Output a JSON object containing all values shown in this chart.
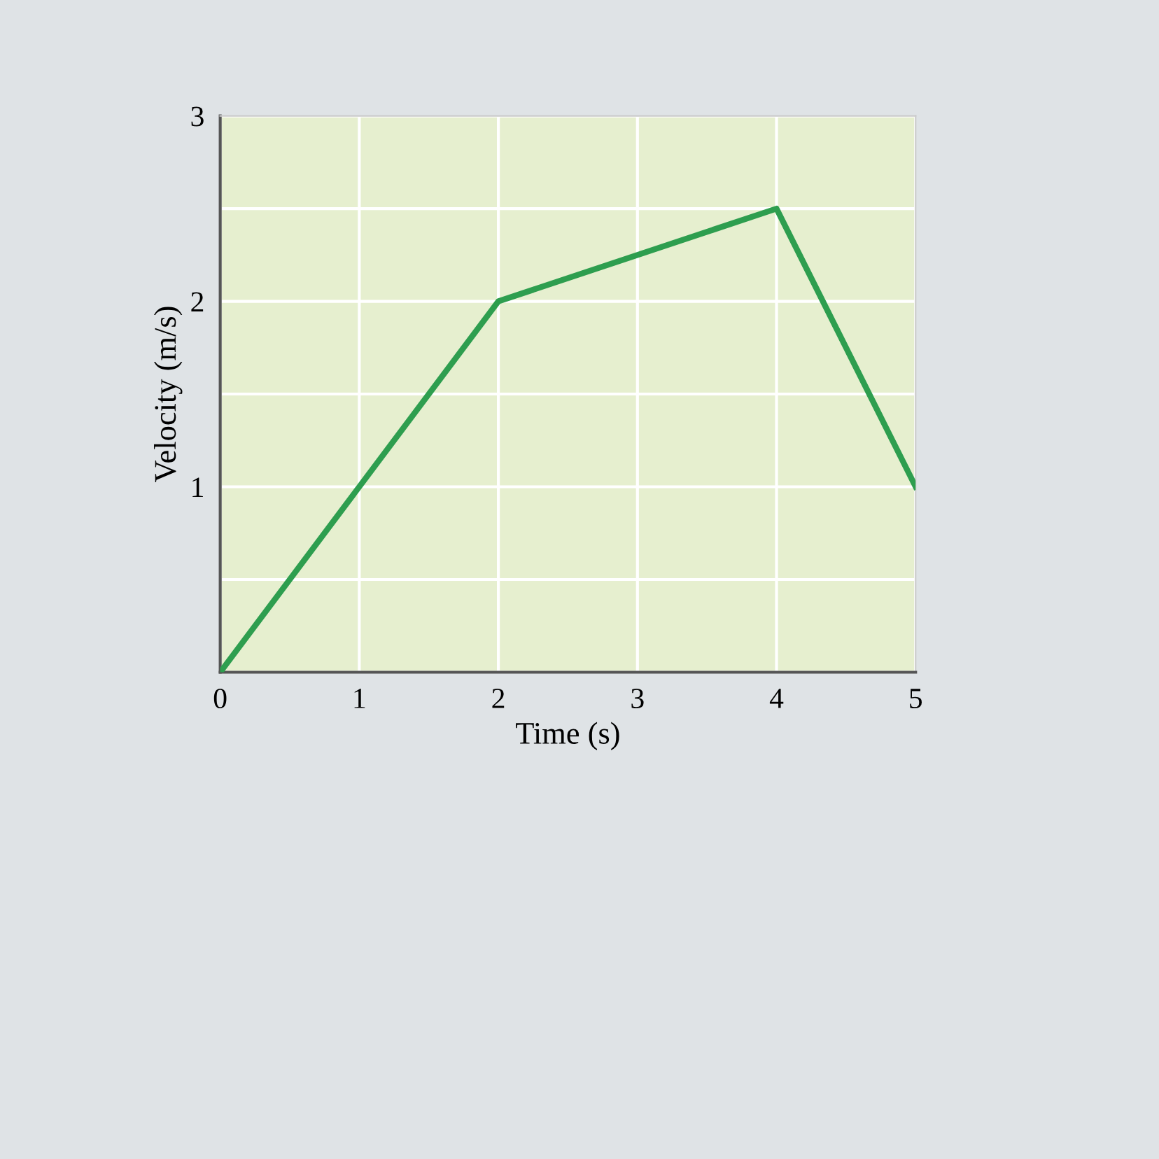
{
  "chart_data": {
    "type": "line",
    "xlabel": "Time (s)",
    "ylabel": "Velocity (m/s)",
    "x": [
      0,
      2,
      4,
      5
    ],
    "series": [
      {
        "color": "#2e9e4f",
        "values": [
          0,
          2,
          2.5,
          1
        ]
      }
    ],
    "xlim": [
      0,
      5
    ],
    "ylim": [
      0,
      3
    ],
    "xticks": [
      {
        "value": 0,
        "label": "0"
      },
      1,
      2,
      3,
      4,
      5
    ],
    "yticks": [
      {
        "value": 0,
        "label": null
      },
      {
        "value": 0.5,
        "label": null
      },
      1,
      {
        "value": 1.5,
        "label": null
      },
      2,
      {
        "value": 2.5,
        "label": null
      },
      3
    ],
    "grid": true,
    "marker": "none",
    "line_style": "solid"
  }
}
